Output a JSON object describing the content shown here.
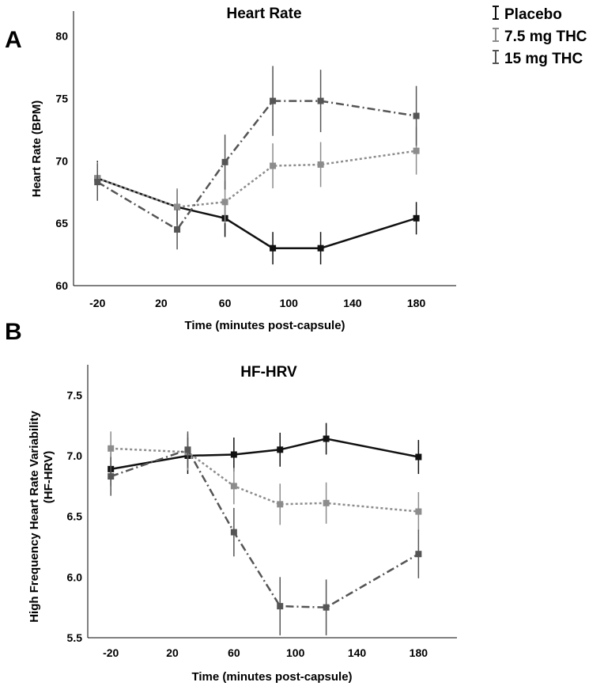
{
  "legend": {
    "items": [
      {
        "label": "Placebo",
        "color": "#111111"
      },
      {
        "label": "7.5 mg THC",
        "color": "#8c8c8c"
      },
      {
        "label": "15 mg THC",
        "color": "#555555"
      }
    ]
  },
  "panels": [
    {
      "letter": "A"
    },
    {
      "letter": "B"
    }
  ],
  "chart_data": [
    {
      "type": "line",
      "title": "Heart Rate",
      "xlabel": "Time (minutes post-capsule)",
      "ylabel": "Heart Rate (BPM)",
      "x": [
        -20,
        30,
        60,
        90,
        120,
        180
      ],
      "xlim": [
        -35,
        205
      ],
      "ylim": [
        60,
        82
      ],
      "xticks": [
        -20,
        20,
        60,
        100,
        140,
        180
      ],
      "yticks": [
        60,
        65,
        70,
        75,
        80
      ],
      "series": [
        {
          "name": "Placebo",
          "color": "#111111",
          "dash": "",
          "values": [
            68.6,
            66.3,
            65.4,
            63.0,
            63.0,
            65.4
          ],
          "errors": [
            1.4,
            1.4,
            1.5,
            1.3,
            1.3,
            1.3
          ]
        },
        {
          "name": "7.5 mg THC",
          "color": "#8c8c8c",
          "dash": "3,3",
          "values": [
            68.6,
            66.3,
            66.7,
            69.6,
            69.7,
            70.8
          ],
          "errors": [
            1.3,
            1.5,
            1.7,
            1.8,
            1.8,
            1.9
          ]
        },
        {
          "name": "15 mg THC",
          "color": "#555555",
          "dash": "10,4,2,4",
          "values": [
            68.3,
            64.5,
            69.9,
            74.8,
            74.8,
            73.6
          ],
          "errors": [
            1.5,
            1.6,
            2.2,
            2.8,
            2.5,
            2.4
          ]
        }
      ]
    },
    {
      "type": "line",
      "title": "HF-HRV",
      "xlabel": "Time (minutes post-capsule)",
      "ylabel": "High Frequency Heart Rate Variability",
      "ylabel2": "(HF-HRV)",
      "x": [
        -20,
        30,
        60,
        90,
        120,
        180
      ],
      "xlim": [
        -35,
        205
      ],
      "ylim": [
        5.5,
        7.75
      ],
      "xticks": [
        -20,
        20,
        60,
        100,
        140,
        180
      ],
      "yticks": [
        5.5,
        6.0,
        6.5,
        7.0,
        7.5
      ],
      "series": [
        {
          "name": "Placebo",
          "color": "#111111",
          "dash": "",
          "values": [
            6.89,
            7.0,
            7.01,
            7.05,
            7.14,
            6.99
          ],
          "errors": [
            0.14,
            0.15,
            0.14,
            0.14,
            0.13,
            0.14
          ]
        },
        {
          "name": "7.5 mg THC",
          "color": "#8c8c8c",
          "dash": "3,3",
          "values": [
            7.06,
            7.03,
            6.75,
            6.6,
            6.61,
            6.54
          ],
          "errors": [
            0.14,
            0.15,
            0.15,
            0.17,
            0.17,
            0.16
          ]
        },
        {
          "name": "15 mg THC",
          "color": "#555555",
          "dash": "10,4,2,4",
          "values": [
            6.83,
            7.05,
            6.37,
            5.76,
            5.75,
            6.19
          ],
          "errors": [
            0.16,
            0.15,
            0.2,
            0.24,
            0.23,
            0.2
          ]
        }
      ]
    }
  ]
}
